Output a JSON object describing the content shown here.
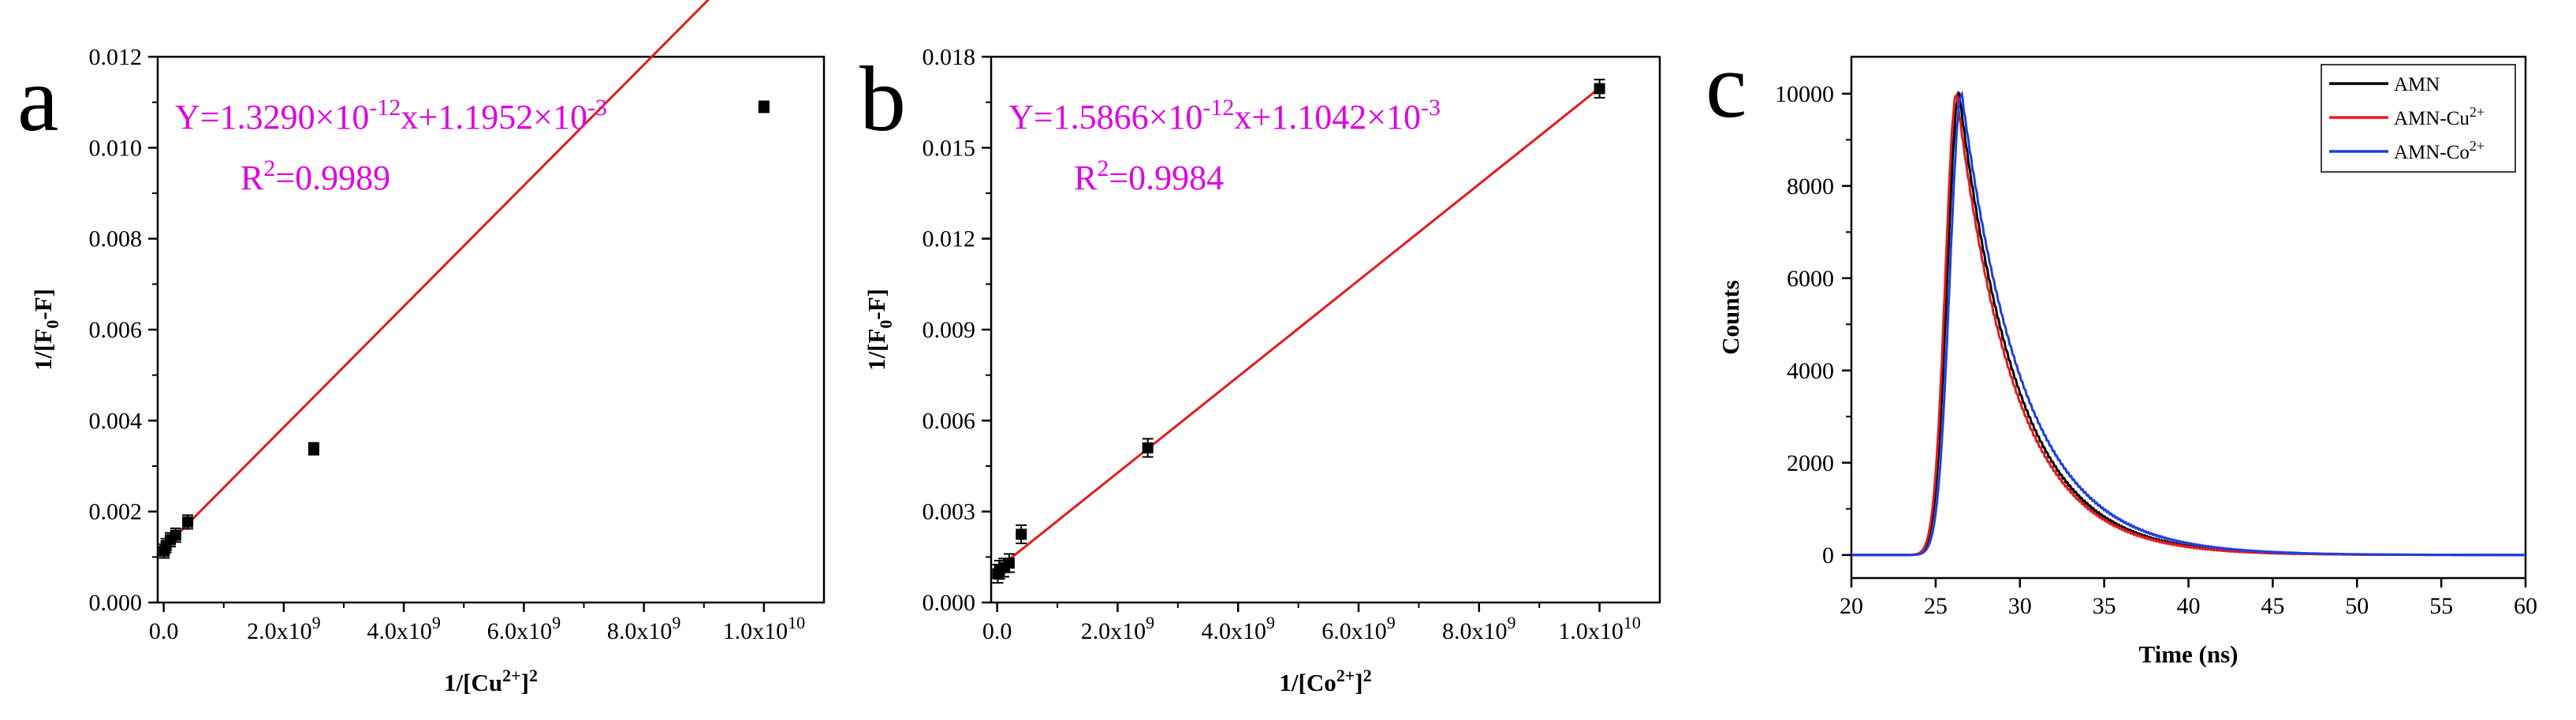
{
  "chart_data": [
    {
      "panel_label": "a",
      "type": "scatter",
      "xlabel": "1/[Cu²⁺]²",
      "ylabel": "1/[F₀-F]",
      "xlim": [
        -100000000.0,
        11000000000.0
      ],
      "ylim": [
        0,
        0.012
      ],
      "x_ticks": [
        0,
        2000000000.0,
        4000000000.0,
        6000000000.0,
        8000000000.0,
        10000000000.0
      ],
      "x_tick_labels": [
        {
          "text": "0.0",
          "mantissa": "0.0",
          "exp": ""
        },
        {
          "text": "2.0x10⁹",
          "mantissa": "2.0x10",
          "exp": "9"
        },
        {
          "text": "4.0x10⁹",
          "mantissa": "4.0x10",
          "exp": "9"
        },
        {
          "text": "6.0x10⁹",
          "mantissa": "6.0x10",
          "exp": "9"
        },
        {
          "text": "8.0x10⁹",
          "mantissa": "8.0x10",
          "exp": "9"
        },
        {
          "text": "1.0x10¹⁰",
          "mantissa": "1.0x10",
          "exp": "10"
        }
      ],
      "y_ticks": [
        0,
        0.002,
        0.004,
        0.006,
        0.008,
        0.01,
        0.012
      ],
      "y_tick_labels": [
        "0.000",
        "0.002",
        "0.004",
        "0.006",
        "0.008",
        "0.010",
        "0.012"
      ],
      "points": [
        {
          "x": 10000000.0,
          "y": 0.00113,
          "err": 0.00015
        },
        {
          "x": 40000000.0,
          "y": 0.00125,
          "err": 0.00015
        },
        {
          "x": 110000000.0,
          "y": 0.00138,
          "err": 0.00015
        },
        {
          "x": 200000000.0,
          "y": 0.00148,
          "err": 0.00015
        },
        {
          "x": 400000000.0,
          "y": 0.00177,
          "err": 0.00015
        },
        {
          "x": 2500000000.0,
          "y": 0.00338,
          "err": 0.00013
        },
        {
          "x": 10000000000.0,
          "y": 0.0109,
          "err": 0.00012
        }
      ],
      "fit": {
        "slope": 1.329e-12,
        "intercept": 0.0011952,
        "x_range": [
          0,
          10000000000.0
        ],
        "color": "#e31a1c"
      },
      "equation": {
        "text": "Y=1.3290×10⁻¹²x+1.1952×10⁻³",
        "lead": "Y=1.3290×10",
        "exp1": "-12",
        "mid": "x+1.1952×10",
        "exp2": "-3"
      },
      "r2": {
        "text": "R²=0.9989",
        "lead": "R",
        "sup": "2",
        "tail": "=0.9989"
      },
      "annotation_color": "#e000e0"
    },
    {
      "panel_label": "b",
      "type": "scatter",
      "xlabel": "1/[Co²⁺]²",
      "ylabel": "1/[F₀-F]",
      "xlim": [
        -100000000.0,
        11000000000.0
      ],
      "ylim": [
        0,
        0.018
      ],
      "x_ticks": [
        0,
        2000000000.0,
        4000000000.0,
        6000000000.0,
        8000000000.0,
        10000000000.0
      ],
      "x_tick_labels": [
        {
          "text": "0.0",
          "mantissa": "0.0",
          "exp": ""
        },
        {
          "text": "2.0x10⁹",
          "mantissa": "2.0x10",
          "exp": "9"
        },
        {
          "text": "4.0x10⁹",
          "mantissa": "4.0x10",
          "exp": "9"
        },
        {
          "text": "6.0x10⁹",
          "mantissa": "6.0x10",
          "exp": "9"
        },
        {
          "text": "8.0x10⁹",
          "mantissa": "8.0x10",
          "exp": "9"
        },
        {
          "text": "1.0x10¹⁰",
          "mantissa": "1.0x10",
          "exp": "10"
        }
      ],
      "y_ticks": [
        0,
        0.003,
        0.006,
        0.009,
        0.012,
        0.015,
        0.018
      ],
      "y_tick_labels": [
        "0.000",
        "0.003",
        "0.006",
        "0.009",
        "0.012",
        "0.015",
        "0.018"
      ],
      "points": [
        {
          "x": 10000000.0,
          "y": 0.00095,
          "err": 0.0003
        },
        {
          "x": 40000000.0,
          "y": 0.00108,
          "err": 0.0003
        },
        {
          "x": 110000000.0,
          "y": 0.00115,
          "err": 0.0003
        },
        {
          "x": 200000000.0,
          "y": 0.0013,
          "err": 0.0003
        },
        {
          "x": 400000000.0,
          "y": 0.00225,
          "err": 0.0003
        },
        {
          "x": 2500000000.0,
          "y": 0.0051,
          "err": 0.0003
        },
        {
          "x": 10000000000.0,
          "y": 0.01695,
          "err": 0.0003
        }
      ],
      "fit": {
        "slope": 1.5866e-12,
        "intercept": 0.0011042,
        "x_range": [
          0,
          10000000000.0
        ],
        "color": "#e31a1c"
      },
      "equation": {
        "text": "Y=1.5866×10⁻¹²x+1.1042×10⁻³",
        "lead": "Y=1.5866×10",
        "exp1": "-12",
        "mid": "x+1.1042×10",
        "exp2": "-3"
      },
      "r2": {
        "text": "R²=0.9984",
        "lead": "R",
        "sup": "2",
        "tail": "=0.9984"
      },
      "annotation_color": "#e000e0"
    },
    {
      "panel_label": "c",
      "type": "line",
      "xlabel": "Time (ns)",
      "ylabel": "Counts",
      "xlim": [
        20,
        60
      ],
      "ylim": [
        -500,
        10800
      ],
      "x_ticks": [
        20,
        25,
        30,
        35,
        40,
        45,
        50,
        55,
        60
      ],
      "x_tick_labels": [
        "20",
        "25",
        "30",
        "35",
        "40",
        "45",
        "50",
        "55",
        "60"
      ],
      "y_ticks": [
        0,
        2000,
        4000,
        6000,
        8000,
        10000
      ],
      "y_tick_labels": [
        "0",
        "2000",
        "4000",
        "6000",
        "8000",
        "10000"
      ],
      "series": [
        {
          "name": "AMN",
          "label_base": "AMN",
          "label_sup": "",
          "color": "#000000",
          "peak_time": 26.4,
          "rise": 1.0,
          "tau": 3.45
        },
        {
          "name": "AMN-Cu²⁺",
          "label_base": "AMN-Cu",
          "label_sup": "2+",
          "color": "#e8191c",
          "peak_time": 26.25,
          "rise": 0.95,
          "tau": 3.4
        },
        {
          "name": "AMN-Co²⁺",
          "label_base": "AMN-Co",
          "label_sup": "2+",
          "color": "#1f3fe0",
          "peak_time": 26.55,
          "rise": 1.0,
          "tau": 3.65
        }
      ],
      "legend_position": "top-right"
    }
  ]
}
